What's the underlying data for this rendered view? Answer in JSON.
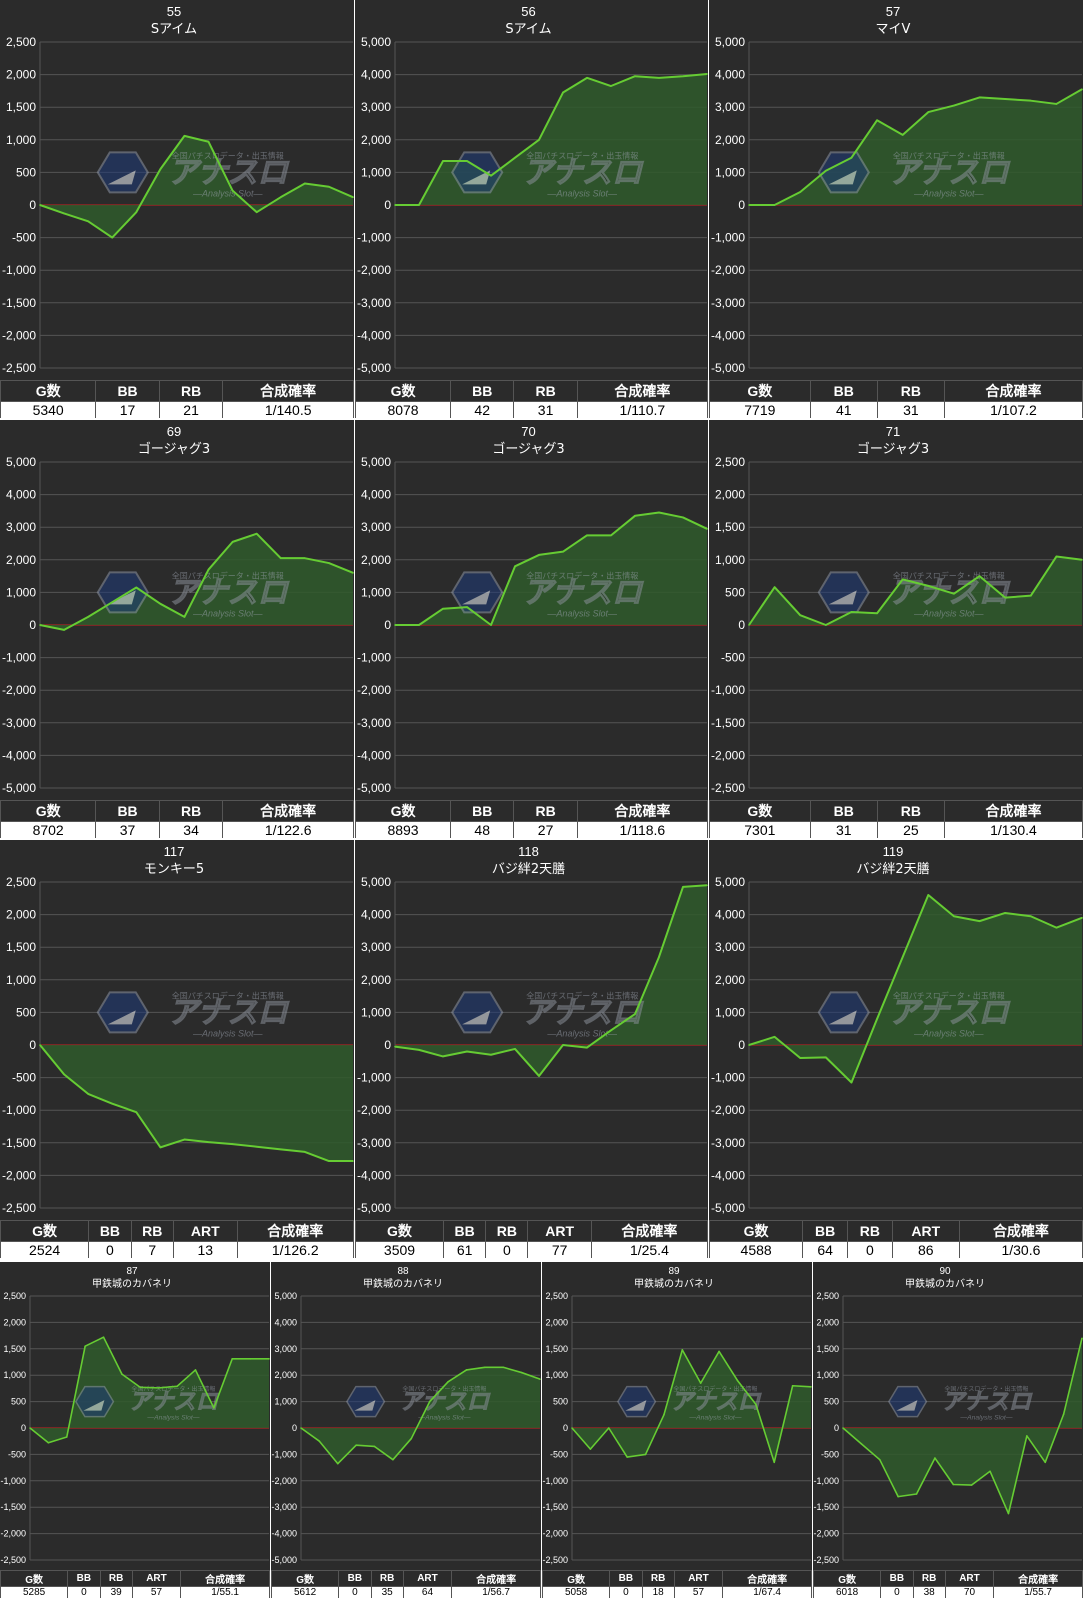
{
  "colors": {
    "panel_bg": "#2b2b2b",
    "grid": "#555555",
    "zero_line": "#cc2222",
    "series_line": "#66cc33",
    "series_fill": "#2f5a2b",
    "text": "#ffffff"
  },
  "watermark": {
    "brand": "アナスロ",
    "tagline": "全国パチスロデータ・出玉情報",
    "sub": "Analysis Slot"
  },
  "panels": [
    {
      "number": "55",
      "machine": "Sアイム",
      "table": {
        "headers": [
          "G数",
          "BB",
          "RB",
          "合成確率"
        ],
        "values": [
          "5340",
          "17",
          "21",
          "1/140.5"
        ]
      },
      "chart_data": {
        "type": "area",
        "ylim": [
          -2500,
          2500
        ],
        "yticks": [
          "2,500",
          "2,000",
          "1,500",
          "1,000",
          "500",
          "0",
          "-500",
          "-1,000",
          "-1,500",
          "-2,000",
          "-2,500"
        ],
        "x": [
          0,
          1,
          2,
          3,
          4,
          5,
          6,
          7,
          8,
          9,
          10,
          11,
          12,
          13
        ],
        "y": [
          0,
          -130,
          -250,
          -500,
          -110,
          550,
          1060,
          970,
          220,
          -110,
          120,
          330,
          280,
          120
        ]
      }
    },
    {
      "number": "56",
      "machine": "Sアイム",
      "table": {
        "headers": [
          "G数",
          "BB",
          "RB",
          "合成確率"
        ],
        "values": [
          "8078",
          "42",
          "31",
          "1/110.7"
        ]
      },
      "chart_data": {
        "type": "area",
        "ylim": [
          -5000,
          5000
        ],
        "yticks": [
          "5,000",
          "4,000",
          "3,000",
          "2,000",
          "1,000",
          "0",
          "-1,000",
          "-2,000",
          "-3,000",
          "-4,000",
          "-5,000"
        ],
        "x": [
          0,
          1,
          2,
          3,
          4,
          5,
          6,
          7,
          8,
          9,
          10,
          11,
          12,
          13
        ],
        "y": [
          0,
          0,
          1350,
          1350,
          900,
          1450,
          2000,
          3450,
          3900,
          3650,
          3950,
          3900,
          3950,
          4020
        ]
      }
    },
    {
      "number": "57",
      "machine": "マイV",
      "table": {
        "headers": [
          "G数",
          "BB",
          "RB",
          "合成確率"
        ],
        "values": [
          "7719",
          "41",
          "31",
          "1/107.2"
        ]
      },
      "chart_data": {
        "type": "area",
        "ylim": [
          -5000,
          5000
        ],
        "yticks": [
          "5,000",
          "4,000",
          "3,000",
          "2,000",
          "1,000",
          "0",
          "-1,000",
          "-2,000",
          "-3,000",
          "-4,000",
          "-5,000"
        ],
        "x": [
          0,
          1,
          2,
          3,
          4,
          5,
          6,
          7,
          8,
          9,
          10,
          11,
          12,
          13
        ],
        "y": [
          0,
          0,
          400,
          1050,
          1450,
          2600,
          2150,
          2850,
          3050,
          3300,
          3250,
          3200,
          3100,
          3550
        ]
      }
    },
    {
      "number": "69",
      "machine": "ゴージャグ3",
      "table": {
        "headers": [
          "G数",
          "BB",
          "RB",
          "合成確率"
        ],
        "values": [
          "8702",
          "37",
          "34",
          "1/122.6"
        ]
      },
      "chart_data": {
        "type": "area",
        "ylim": [
          -5000,
          5000
        ],
        "yticks": [
          "5,000",
          "4,000",
          "3,000",
          "2,000",
          "1,000",
          "0",
          "-1,000",
          "-2,000",
          "-3,000",
          "-4,000",
          "-5,000"
        ],
        "x": [
          0,
          1,
          2,
          3,
          4,
          5,
          6,
          7,
          8,
          9,
          10,
          11,
          12,
          13
        ],
        "y": [
          0,
          -150,
          250,
          700,
          1150,
          650,
          250,
          1700,
          2550,
          2800,
          2050,
          2050,
          1900,
          1600
        ]
      }
    },
    {
      "number": "70",
      "machine": "ゴージャグ3",
      "table": {
        "headers": [
          "G数",
          "BB",
          "RB",
          "合成確率"
        ],
        "values": [
          "8893",
          "48",
          "27",
          "1/118.6"
        ]
      },
      "chart_data": {
        "type": "area",
        "ylim": [
          -5000,
          5000
        ],
        "yticks": [
          "5,000",
          "4,000",
          "3,000",
          "2,000",
          "1,000",
          "0",
          "-1,000",
          "-2,000",
          "-3,000",
          "-4,000",
          "-5,000"
        ],
        "x": [
          0,
          1,
          2,
          3,
          4,
          5,
          6,
          7,
          8,
          9,
          10,
          11,
          12,
          13
        ],
        "y": [
          0,
          0,
          500,
          550,
          0,
          1800,
          2150,
          2250,
          2750,
          2750,
          3350,
          3450,
          3300,
          2950
        ]
      }
    },
    {
      "number": "71",
      "machine": "ゴージャグ3",
      "table": {
        "headers": [
          "G数",
          "BB",
          "RB",
          "合成確率"
        ],
        "values": [
          "7301",
          "31",
          "25",
          "1/130.4"
        ]
      },
      "chart_data": {
        "type": "area",
        "ylim": [
          -2500,
          2500
        ],
        "yticks": [
          "2,500",
          "2,000",
          "1,500",
          "1,000",
          "500",
          "0",
          "-500",
          "-1,000",
          "-1,500",
          "-2,000",
          "-2,500"
        ],
        "x": [
          0,
          1,
          2,
          3,
          4,
          5,
          6,
          7,
          8,
          9,
          10,
          11,
          12,
          13
        ],
        "y": [
          0,
          580,
          150,
          0,
          200,
          180,
          700,
          600,
          480,
          750,
          420,
          450,
          1050,
          1000
        ]
      }
    },
    {
      "number": "117",
      "machine": "モンキー5",
      "table": {
        "headers": [
          "G数",
          "BB",
          "RB",
          "ART",
          "合成確率"
        ],
        "values": [
          "2524",
          "0",
          "7",
          "13",
          "1/126.2"
        ]
      },
      "chart_data": {
        "type": "area",
        "ylim": [
          -2500,
          2500
        ],
        "yticks": [
          "2,500",
          "2,000",
          "1,500",
          "1,000",
          "500",
          "0",
          "-500",
          "-1,000",
          "-1,500",
          "-2,000",
          "-2,500"
        ],
        "x": [
          0,
          1,
          2,
          3,
          4,
          5,
          6,
          7,
          8,
          9,
          10,
          11,
          12,
          13
        ],
        "y": [
          0,
          -450,
          -750,
          -900,
          -1030,
          -1570,
          -1450,
          -1490,
          -1520,
          -1560,
          -1600,
          -1640,
          -1780,
          -1780
        ]
      }
    },
    {
      "number": "118",
      "machine": "バジ絆2天膳",
      "table": {
        "headers": [
          "G数",
          "BB",
          "RB",
          "ART",
          "合成確率"
        ],
        "values": [
          "3509",
          "61",
          "0",
          "77",
          "1/25.4"
        ]
      },
      "chart_data": {
        "type": "area",
        "ylim": [
          -5000,
          5000
        ],
        "yticks": [
          "5,000",
          "4,000",
          "3,000",
          "2,000",
          "1,000",
          "0",
          "-1,000",
          "-2,000",
          "-3,000",
          "-4,000",
          "-5,000"
        ],
        "x": [
          0,
          1,
          2,
          3,
          4,
          5,
          6,
          7,
          8,
          9,
          10,
          11,
          12,
          13
        ],
        "y": [
          -50,
          -150,
          -350,
          -200,
          -300,
          -120,
          -950,
          0,
          -80,
          450,
          950,
          2700,
          4850,
          4900
        ]
      }
    },
    {
      "number": "119",
      "machine": "バジ絆2天膳",
      "table": {
        "headers": [
          "G数",
          "BB",
          "RB",
          "ART",
          "合成確率"
        ],
        "values": [
          "4588",
          "64",
          "0",
          "86",
          "1/30.6"
        ]
      },
      "chart_data": {
        "type": "area",
        "ylim": [
          -5000,
          5000
        ],
        "yticks": [
          "5,000",
          "4,000",
          "3,000",
          "2,000",
          "1,000",
          "0",
          "-1,000",
          "-2,000",
          "-3,000",
          "-4,000",
          "-5,000"
        ],
        "x": [
          0,
          1,
          2,
          3,
          4,
          5,
          6,
          7,
          8,
          9,
          10,
          11,
          12,
          13
        ],
        "y": [
          0,
          250,
          -400,
          -380,
          -1150,
          800,
          2700,
          4600,
          3950,
          3800,
          4050,
          3950,
          3600,
          3900
        ]
      }
    },
    {
      "number": "87",
      "machine": "甲鉄城のカバネリ",
      "table": {
        "headers": [
          "G数",
          "BB",
          "RB",
          "ART",
          "合成確率"
        ],
        "values": [
          "5285",
          "0",
          "39",
          "57",
          "1/55.1"
        ]
      },
      "chart_data": {
        "type": "area",
        "ylim": [
          -2500,
          2500
        ],
        "yticks": [
          "2,500",
          "2,000",
          "1,500",
          "1,000",
          "500",
          "0",
          "-500",
          "-1,000",
          "-1,500",
          "-2,000",
          "-2,500"
        ],
        "x": [
          0,
          1,
          2,
          3,
          4,
          5,
          6,
          7,
          8,
          9,
          10,
          11,
          12,
          13
        ],
        "y": [
          0,
          -280,
          -170,
          1550,
          1720,
          1020,
          770,
          760,
          790,
          1100,
          380,
          1310,
          1310,
          1310
        ]
      }
    },
    {
      "number": "88",
      "machine": "甲鉄城のカバネリ",
      "table": {
        "headers": [
          "G数",
          "BB",
          "RB",
          "ART",
          "合成確率"
        ],
        "values": [
          "5612",
          "0",
          "35",
          "64",
          "1/56.7"
        ]
      },
      "chart_data": {
        "type": "area",
        "ylim": [
          -5000,
          5000
        ],
        "yticks": [
          "5,000",
          "4,000",
          "3,000",
          "2,000",
          "1,000",
          "0",
          "-1,000",
          "-2,000",
          "-3,000",
          "-4,000",
          "-5,000"
        ],
        "x": [
          0,
          1,
          2,
          3,
          4,
          5,
          6,
          7,
          8,
          9,
          10,
          11,
          12,
          13
        ],
        "y": [
          0,
          -500,
          -1350,
          -650,
          -700,
          -1200,
          -400,
          1000,
          1750,
          2200,
          2300,
          2300,
          2100,
          1850
        ]
      }
    },
    {
      "number": "89",
      "machine": "甲鉄城のカバネリ",
      "table": {
        "headers": [
          "G数",
          "BB",
          "RB",
          "ART",
          "合成確率"
        ],
        "values": [
          "5058",
          "0",
          "18",
          "57",
          "1/67.4"
        ]
      },
      "chart_data": {
        "type": "area",
        "ylim": [
          -2500,
          2500
        ],
        "yticks": [
          "2,500",
          "2,000",
          "1,500",
          "1,000",
          "500",
          "0",
          "-500",
          "-1,000",
          "-1,500",
          "-2,000",
          "-2,500"
        ],
        "x": [
          0,
          1,
          2,
          3,
          4,
          5,
          6,
          7,
          8,
          9,
          10,
          11,
          12,
          13
        ],
        "y": [
          0,
          -400,
          0,
          -550,
          -500,
          250,
          1480,
          850,
          1450,
          900,
          450,
          -650,
          800,
          780
        ]
      }
    },
    {
      "number": "90",
      "machine": "甲鉄城のカバネリ",
      "table": {
        "headers": [
          "G数",
          "BB",
          "RB",
          "ART",
          "合成確率"
        ],
        "values": [
          "6018",
          "0",
          "38",
          "70",
          "1/55.7"
        ]
      },
      "chart_data": {
        "type": "area",
        "ylim": [
          -2500,
          2500
        ],
        "yticks": [
          "2,500",
          "2,000",
          "1,500",
          "1,000",
          "500",
          "0",
          "-500",
          "-1,000",
          "-1,500",
          "-2,000",
          "-2,500"
        ],
        "x": [
          0,
          1,
          2,
          3,
          4,
          5,
          6,
          7,
          8,
          9,
          10,
          11,
          12,
          13
        ],
        "y": [
          0,
          -300,
          -600,
          -1300,
          -1250,
          -570,
          -1070,
          -1080,
          -820,
          -1620,
          -150,
          -650,
          260,
          1700
        ]
      }
    }
  ]
}
